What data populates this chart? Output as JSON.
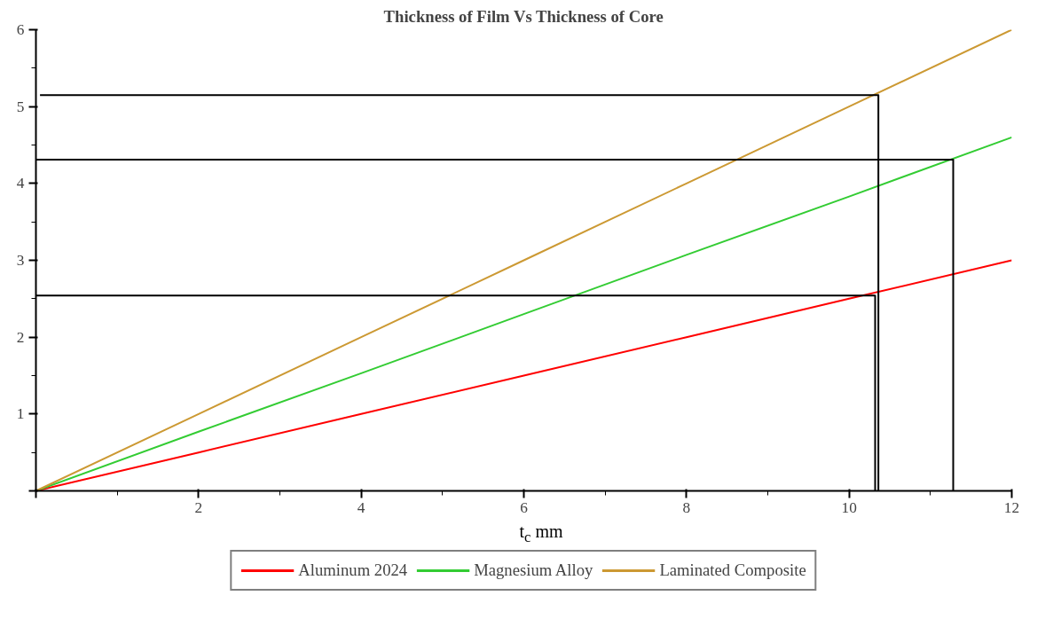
{
  "chart_data": {
    "type": "line",
    "title": "Thickness of Film Vs Thickness of Core",
    "xlabel": "t$_{c}$ mm",
    "x": [
      0,
      2,
      4,
      6,
      8,
      10,
      12
    ],
    "xlim": [
      0,
      12
    ],
    "ylim": [
      0,
      6
    ],
    "xticks": [
      {
        "value": 0,
        "label": null
      },
      2,
      4,
      6,
      8,
      10,
      12
    ],
    "yticks": [
      {
        "value": 0,
        "label": null
      },
      1,
      2,
      3,
      4,
      5,
      6
    ],
    "grid": false,
    "legend": "bottom",
    "marker": "none",
    "line_style": "solid",
    "series": [
      {
        "name": "Aluminum 2024",
        "color": "#ff0000",
        "values": [
          0,
          0.5,
          1,
          1.5,
          2,
          2.5,
          3
        ]
      },
      {
        "name": "Magnesium Alloy",
        "color": "#33cc33",
        "values": [
          0,
          0.77,
          1.53,
          2.3,
          3.07,
          3.83,
          4.6
        ]
      },
      {
        "name": "Laminated Composite",
        "color": "#cc9933",
        "values": [
          0,
          1,
          2,
          3,
          4,
          5,
          6
        ]
      },
      {
        "color": "#000000",
        "x": [
          0.05,
          10.36,
          10.36
        ],
        "values": [
          5.15,
          5.15,
          0
        ]
      },
      {
        "color": "#000000",
        "x": [
          0,
          11.28,
          11.28
        ],
        "values": [
          4.31,
          4.31,
          0
        ]
      },
      {
        "color": "#000000",
        "x": [
          0,
          10.32,
          10.32
        ],
        "values": [
          2.54,
          2.54,
          0
        ]
      }
    ]
  }
}
